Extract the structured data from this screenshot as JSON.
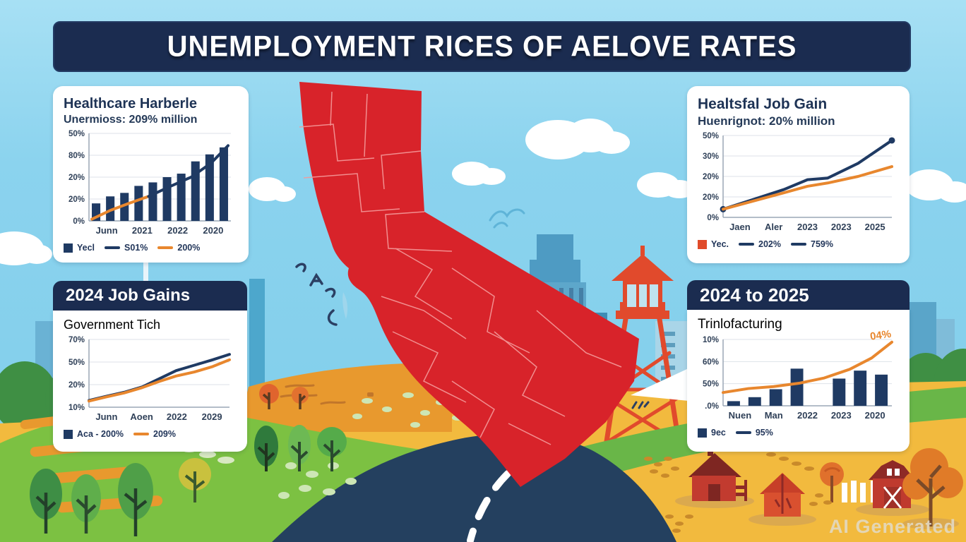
{
  "header": {
    "title": "UNEMPLOYMENT RICES OF AELOVE RATES"
  },
  "cards": {
    "healthcare": {
      "title": "Healthcare Harberle",
      "subtitle": "Unermioss: 209% million",
      "legend": [
        {
          "swatch": "square",
          "color": "#1f3a63",
          "label": "Yecl"
        },
        {
          "swatch": "line",
          "color": "#1f3a63",
          "label": "S01%"
        },
        {
          "swatch": "line",
          "color": "#e8872e",
          "label": "200%"
        }
      ]
    },
    "job_gains": {
      "header": "2024 Job Gains",
      "title": "Government Tich",
      "legend": [
        {
          "swatch": "square",
          "color": "#1f3a63",
          "label": "Aca - 200%"
        },
        {
          "swatch": "line",
          "color": "#e8872e",
          "label": "209%"
        }
      ]
    },
    "healstfal": {
      "title": "Healtsfal Job Gain",
      "subtitle": "Huenrignot: 20% million",
      "legend": [
        {
          "swatch": "square",
          "color": "#e04b2a",
          "label": "Yec."
        },
        {
          "swatch": "line",
          "color": "#1f3a63",
          "label": "202%"
        },
        {
          "swatch": "line",
          "color": "#1f3a63",
          "label": "759%"
        }
      ]
    },
    "manufacturing": {
      "header": "2024 to 2025",
      "title": "Trinlofacturing",
      "legend": [
        {
          "swatch": "square",
          "color": "#1f3a63",
          "label": "9ec"
        },
        {
          "swatch": "line",
          "color": "#1f3a63",
          "label": "95%"
        }
      ]
    }
  },
  "watermark": "AI Generated",
  "colors": {
    "navy": "#1e3355",
    "orange": "#e8872e",
    "map_red": "#d8232a",
    "header_bg": "#1b2c50",
    "sky": "#8bd3ee",
    "bar_navy": "#1f3a63"
  },
  "chart_data": [
    {
      "id": "healthcare_bar",
      "type": "bar",
      "title": "Healthcare Harberle",
      "y_ticks": [
        "50%",
        "80%",
        "20%",
        "20%",
        "0%"
      ],
      "x_labels": [
        "Junn",
        "2021",
        "2022",
        "2020"
      ],
      "bar_color": "#1f3a63",
      "values": [
        20,
        28,
        32,
        40,
        44,
        50,
        54,
        68,
        76,
        84
      ],
      "series": [
        {
          "name": "200%",
          "color": "#e8872e",
          "points": [
            [
              0.02,
              2
            ],
            [
              0.15,
              12
            ],
            [
              0.28,
              20
            ],
            [
              0.42,
              28
            ]
          ]
        },
        {
          "name": "S01%",
          "color": "#1f3a63",
          "points": [
            [
              0.42,
              28
            ],
            [
              0.58,
              40
            ],
            [
              0.72,
              50
            ],
            [
              0.86,
              66
            ],
            [
              0.98,
              86
            ]
          ]
        }
      ]
    },
    {
      "id": "government_line",
      "type": "line",
      "title": "Government Tich",
      "y_ticks": [
        "70%",
        "50%",
        "20%",
        "10%"
      ],
      "x_labels": [
        "Junn",
        "Aoen",
        "2022",
        "2029"
      ],
      "series": [
        {
          "name": "Aca - 200%",
          "color": "#1f3a63",
          "points": [
            [
              0,
              10
            ],
            [
              0.12,
              16
            ],
            [
              0.25,
              22
            ],
            [
              0.38,
              30
            ],
            [
              0.5,
              42
            ],
            [
              0.62,
              54
            ],
            [
              0.75,
              62
            ],
            [
              0.88,
              70
            ],
            [
              1,
              78
            ]
          ]
        },
        {
          "name": "209%",
          "color": "#e8872e",
          "points": [
            [
              0,
              9
            ],
            [
              0.12,
              15
            ],
            [
              0.25,
              21
            ],
            [
              0.38,
              29
            ],
            [
              0.5,
              38
            ],
            [
              0.62,
              46
            ],
            [
              0.75,
              52
            ],
            [
              0.88,
              60
            ],
            [
              1,
              70
            ]
          ]
        }
      ]
    },
    {
      "id": "healstfal_line",
      "type": "line",
      "title": "Healtsfal Job Gain",
      "y_ticks": [
        "50%",
        "30%",
        "20%",
        "20%",
        "0%"
      ],
      "x_labels": [
        "Jaen",
        "Aler",
        "2023",
        "2023",
        "2025"
      ],
      "series": [
        {
          "name": "759%",
          "color": "#1f3a63",
          "dots": true,
          "points": [
            [
              0,
              10
            ],
            [
              0.18,
              22
            ],
            [
              0.36,
              34
            ],
            [
              0.5,
              46
            ],
            [
              0.62,
              48
            ],
            [
              0.8,
              66
            ],
            [
              1,
              94
            ]
          ]
        },
        {
          "name": "202%",
          "color": "#e8872e",
          "points": [
            [
              0,
              10
            ],
            [
              0.18,
              20
            ],
            [
              0.36,
              30
            ],
            [
              0.5,
              38
            ],
            [
              0.62,
              42
            ],
            [
              0.8,
              50
            ],
            [
              1,
              62
            ]
          ]
        }
      ]
    },
    {
      "id": "manufacturing_combo",
      "type": "bar+line",
      "title": "Trinlofacturing",
      "y_ticks": [
        "10%",
        "60%",
        "50%",
        ".0%"
      ],
      "x_labels": [
        "Nuen",
        "Man",
        "2022",
        "2023",
        "2020"
      ],
      "bar_color": "#1f3a63",
      "values": [
        7,
        13,
        25,
        56,
        null,
        41,
        53,
        47
      ],
      "series": [
        {
          "name": "95%",
          "color": "#e8872e",
          "points": [
            [
              0,
              20
            ],
            [
              0.15,
              26
            ],
            [
              0.3,
              29
            ],
            [
              0.45,
              34
            ],
            [
              0.6,
              42
            ],
            [
              0.75,
              55
            ],
            [
              0.88,
              72
            ],
            [
              1,
              96
            ]
          ]
        }
      ],
      "annotation": {
        "text": "04%",
        "color": "#e8872e"
      }
    }
  ]
}
